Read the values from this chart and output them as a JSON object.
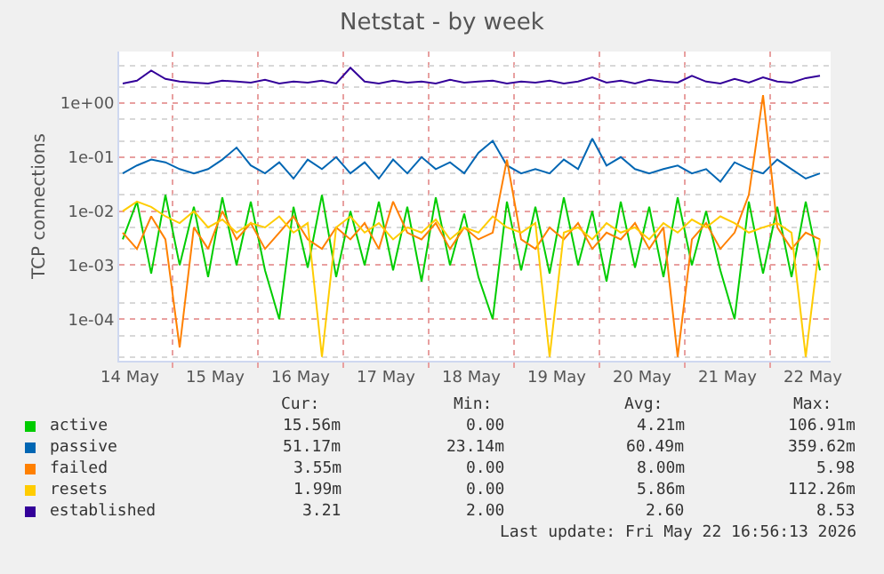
{
  "chart_data": {
    "type": "line",
    "title": "Netstat - by week",
    "ylabel": "TCP connections",
    "log": "y",
    "grid": true,
    "legend": "bottom left",
    "line_style": "solid",
    "marker": "none",
    "x": [
      "2026-05-14T10:00",
      "2026-05-14T14:00",
      "2026-05-14T18:00",
      "2026-05-14T22:00",
      "2026-05-15T02:00",
      "2026-05-15T06:00",
      "2026-05-15T10:00",
      "2026-05-15T14:00",
      "2026-05-15T18:00",
      "2026-05-15T22:00",
      "2026-05-16T02:00",
      "2026-05-16T06:00",
      "2026-05-16T10:00",
      "2026-05-16T14:00",
      "2026-05-16T18:00",
      "2026-05-16T22:00",
      "2026-05-17T02:00",
      "2026-05-17T06:00",
      "2026-05-17T10:00",
      "2026-05-17T14:00",
      "2026-05-17T18:00",
      "2026-05-17T22:00",
      "2026-05-18T02:00",
      "2026-05-18T06:00",
      "2026-05-18T10:00",
      "2026-05-18T14:00",
      "2026-05-18T18:00",
      "2026-05-18T22:00",
      "2026-05-19T02:00",
      "2026-05-19T06:00",
      "2026-05-19T10:00",
      "2026-05-19T14:00",
      "2026-05-19T18:00",
      "2026-05-19T22:00",
      "2026-05-20T02:00",
      "2026-05-20T06:00",
      "2026-05-20T10:00",
      "2026-05-20T14:00",
      "2026-05-20T18:00",
      "2026-05-20T22:00",
      "2026-05-21T02:00",
      "2026-05-21T06:00",
      "2026-05-21T10:00",
      "2026-05-21T14:00",
      "2026-05-21T18:00",
      "2026-05-21T22:00",
      "2026-05-22T02:00",
      "2026-05-22T06:00",
      "2026-05-22T10:00",
      "2026-05-22T14:00"
    ],
    "xlim": [
      "2026-05-14T09:00",
      "2026-05-22T17:00"
    ],
    "xticks": [
      {
        "value": "2026-05-14T12:00",
        "label": "14 May"
      },
      {
        "value": "2026-05-15T12:00",
        "label": "15 May"
      },
      {
        "value": "2026-05-16T12:00",
        "label": "16 May"
      },
      {
        "value": "2026-05-17T12:00",
        "label": "17 May"
      },
      {
        "value": "2026-05-18T12:00",
        "label": "18 May"
      },
      {
        "value": "2026-05-19T12:00",
        "label": "19 May"
      },
      {
        "value": "2026-05-20T12:00",
        "label": "20 May"
      },
      {
        "value": "2026-05-21T12:00",
        "label": "21 May"
      },
      {
        "value": "2026-05-22T12:00",
        "label": "22 May"
      }
    ],
    "ylim": [
      1.7e-05,
      9
    ],
    "yticks": [
      {
        "value": 0.0001,
        "label": "1e-04"
      },
      {
        "value": 0.001,
        "label": "1e-03"
      },
      {
        "value": 0.01,
        "label": "1e-02"
      },
      {
        "value": 0.1,
        "label": "1e-01"
      },
      {
        "value": 1,
        "label": "1e+00"
      }
    ],
    "series": [
      {
        "name": "active",
        "color": "#00cc00",
        "values": [
          0.003,
          0.015,
          0.0007,
          0.02,
          0.001,
          0.012,
          0.0006,
          0.018,
          0.001,
          0.015,
          0.0008,
          0.0001,
          0.012,
          0.0009,
          0.02,
          0.0006,
          0.01,
          0.001,
          0.015,
          0.0008,
          0.012,
          0.0005,
          0.018,
          0.001,
          0.009,
          0.0006,
          0.0001,
          0.015,
          0.0008,
          0.012,
          0.0007,
          0.018,
          0.001,
          0.01,
          0.0005,
          0.015,
          0.0009,
          0.012,
          0.0006,
          0.018,
          0.001,
          0.01,
          0.0008,
          0.0001,
          0.015,
          0.0007,
          0.012,
          0.0006,
          0.015,
          0.0008
        ]
      },
      {
        "name": "passive",
        "color": "#0066b3",
        "values": [
          0.05,
          0.07,
          0.09,
          0.08,
          0.06,
          0.05,
          0.06,
          0.09,
          0.15,
          0.07,
          0.05,
          0.08,
          0.04,
          0.09,
          0.06,
          0.1,
          0.05,
          0.08,
          0.04,
          0.09,
          0.05,
          0.1,
          0.06,
          0.08,
          0.05,
          0.12,
          0.2,
          0.07,
          0.05,
          0.06,
          0.05,
          0.09,
          0.06,
          0.22,
          0.07,
          0.1,
          0.06,
          0.05,
          0.06,
          0.07,
          0.05,
          0.06,
          0.035,
          0.08,
          0.06,
          0.05,
          0.09,
          0.06,
          0.04,
          0.05
        ]
      },
      {
        "name": "failed",
        "color": "#ff8000",
        "values": [
          0.004,
          0.002,
          0.008,
          0.003,
          3e-05,
          0.005,
          0.002,
          0.01,
          0.003,
          0.006,
          0.002,
          0.004,
          0.008,
          0.003,
          0.002,
          0.005,
          0.003,
          0.006,
          0.002,
          0.015,
          0.004,
          0.003,
          0.006,
          0.002,
          0.005,
          0.003,
          0.004,
          0.09,
          0.003,
          0.002,
          0.005,
          0.003,
          0.006,
          0.002,
          0.004,
          0.003,
          0.006,
          0.002,
          0.005,
          2e-05,
          0.003,
          0.006,
          0.002,
          0.004,
          0.02,
          1.4,
          0.005,
          0.002,
          0.004,
          0.003
        ]
      },
      {
        "name": "resets",
        "color": "#ffcc00",
        "values": [
          0.01,
          0.015,
          0.012,
          0.008,
          0.006,
          0.01,
          0.005,
          0.007,
          0.004,
          0.006,
          0.005,
          0.008,
          0.004,
          0.006,
          2e-05,
          0.005,
          0.008,
          0.004,
          0.006,
          0.003,
          0.005,
          0.004,
          0.007,
          0.003,
          0.005,
          0.004,
          0.008,
          0.005,
          0.004,
          0.006,
          2e-05,
          0.004,
          0.005,
          0.003,
          0.006,
          0.004,
          0.005,
          0.003,
          0.006,
          0.004,
          0.007,
          0.005,
          0.008,
          0.006,
          0.004,
          0.005,
          0.006,
          0.004,
          2e-05,
          0.003
        ]
      },
      {
        "name": "established",
        "color": "#330099",
        "values": [
          2.3,
          2.6,
          4.0,
          2.8,
          2.5,
          2.4,
          2.3,
          2.6,
          2.5,
          2.4,
          2.7,
          2.3,
          2.5,
          2.4,
          2.6,
          2.3,
          4.5,
          2.5,
          2.3,
          2.6,
          2.4,
          2.5,
          2.3,
          2.7,
          2.4,
          2.5,
          2.6,
          2.3,
          2.5,
          2.4,
          2.6,
          2.3,
          2.5,
          3.0,
          2.4,
          2.6,
          2.3,
          2.7,
          2.5,
          2.4,
          3.2,
          2.5,
          2.3,
          2.8,
          2.4,
          3.0,
          2.5,
          2.4,
          2.9,
          3.2
        ]
      }
    ],
    "annotations": [
      "Cur:",
      "Min:",
      "Avg:",
      "Max:",
      "15.56m",
      "0.00",
      "4.21m",
      "106.91m",
      "51.17m",
      "23.14m",
      "60.49m",
      "359.62m",
      "3.55m",
      "0.00",
      "8.00m",
      "5.98",
      "1.99m",
      "0.00",
      "5.86m",
      "112.26m",
      "3.21",
      "2.00",
      "2.60",
      "8.53",
      "Last update: Fri May 22 16:56:13 2026"
    ]
  }
}
